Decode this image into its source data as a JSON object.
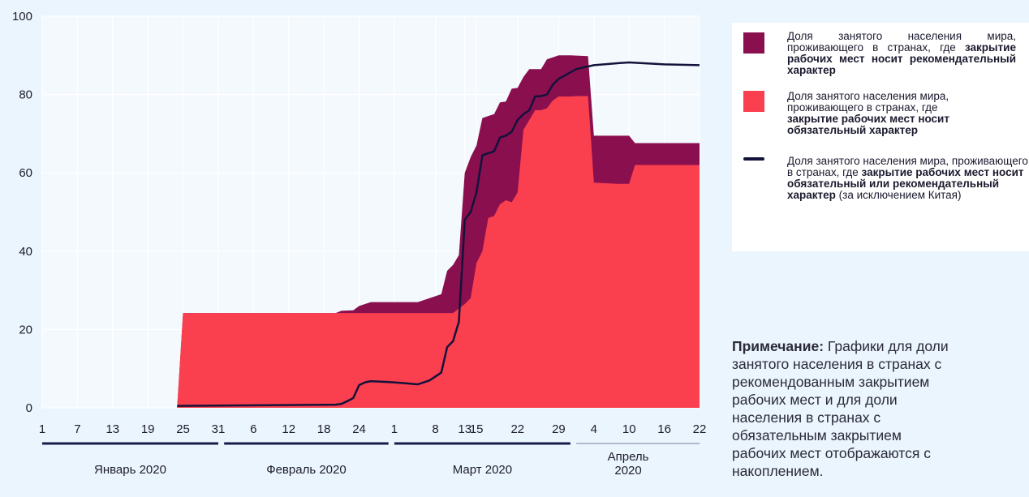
{
  "chart_data": {
    "type": "area",
    "ylim": [
      0,
      100
    ],
    "y_ticks": [
      "0",
      "20",
      "40",
      "60",
      "80",
      "100"
    ],
    "grid": true,
    "x_tick_labels": [
      "1",
      "7",
      "13",
      "19",
      "25",
      "31",
      "6",
      "12",
      "18",
      "24",
      "1",
      "8",
      "13",
      "15",
      "22",
      "29",
      "4",
      "10",
      "16",
      "22"
    ],
    "months": [
      {
        "label": "Январь 2020"
      },
      {
        "label": "Февраль 2020"
      },
      {
        "label": "Март 2020"
      },
      {
        "label": "Апрель\n2020"
      }
    ],
    "series": [
      {
        "key": "recommended",
        "color": "#8a0f4e",
        "dates": [
          "2020-01-24",
          "2020-01-25",
          "2020-02-20",
          "2020-02-21",
          "2020-02-23",
          "2020-02-24",
          "2020-02-25",
          "2020-02-26",
          "2020-03-05",
          "2020-03-09",
          "2020-03-10",
          "2020-03-11",
          "2020-03-12",
          "2020-03-13",
          "2020-03-14",
          "2020-03-15",
          "2020-03-16",
          "2020-03-17",
          "2020-03-18",
          "2020-03-19",
          "2020-03-20",
          "2020-03-21",
          "2020-03-22",
          "2020-03-23",
          "2020-03-24",
          "2020-03-25",
          "2020-03-26",
          "2020-03-27",
          "2020-03-28",
          "2020-03-29",
          "2020-03-31",
          "2020-04-03",
          "2020-04-04",
          "2020-04-08",
          "2020-04-10",
          "2020-04-11",
          "2020-04-16",
          "2020-04-22"
        ],
        "values": [
          0.3,
          24.2,
          24.2,
          24.8,
          24.9,
          26.0,
          26.5,
          27.0,
          27.0,
          29.0,
          35.0,
          36.5,
          39.0,
          60.0,
          64.0,
          67.0,
          74.0,
          74.5,
          75.0,
          78.0,
          78.2,
          81.5,
          81.7,
          84.5,
          86.5,
          86.5,
          86.5,
          89.0,
          89.5,
          90.0,
          90.0,
          89.8,
          69.5,
          69.5,
          69.5,
          67.6,
          67.6,
          67.6
        ]
      },
      {
        "key": "mandatory",
        "color": "#fa3f4f",
        "dates": [
          "2020-01-24",
          "2020-01-25",
          "2020-03-11",
          "2020-03-13",
          "2020-03-14",
          "2020-03-15",
          "2020-03-16",
          "2020-03-17",
          "2020-03-18",
          "2020-03-19",
          "2020-03-20",
          "2020-03-21",
          "2020-03-22",
          "2020-03-23",
          "2020-03-24",
          "2020-03-25",
          "2020-03-26",
          "2020-03-27",
          "2020-03-28",
          "2020-03-29",
          "2020-03-31",
          "2020-04-01",
          "2020-04-02",
          "2020-04-03",
          "2020-04-04",
          "2020-04-08",
          "2020-04-10",
          "2020-04-11",
          "2020-04-16",
          "2020-04-22"
        ],
        "values": [
          0.3,
          24.2,
          24.2,
          26.5,
          28.0,
          37.0,
          40.0,
          48.5,
          49.0,
          52.0,
          53.0,
          52.5,
          55.0,
          71.0,
          73.5,
          76.0,
          76.0,
          76.5,
          78.5,
          79.5,
          79.5,
          79.6,
          79.6,
          79.6,
          57.5,
          57.2,
          57.2,
          62.0,
          62.0,
          62.0
        ]
      },
      {
        "key": "combined",
        "color": "#12123a",
        "dates": [
          "2020-01-24",
          "2020-02-20",
          "2020-02-21",
          "2020-02-22",
          "2020-02-23",
          "2020-02-24",
          "2020-02-25",
          "2020-02-26",
          "2020-03-01",
          "2020-03-05",
          "2020-03-07",
          "2020-03-09",
          "2020-03-10",
          "2020-03-11",
          "2020-03-12",
          "2020-03-13",
          "2020-03-14",
          "2020-03-15",
          "2020-03-16",
          "2020-03-17",
          "2020-03-18",
          "2020-03-19",
          "2020-03-20",
          "2020-03-21",
          "2020-03-22",
          "2020-03-23",
          "2020-03-24",
          "2020-03-25",
          "2020-03-26",
          "2020-03-27",
          "2020-03-28",
          "2020-03-29",
          "2020-04-01",
          "2020-04-04",
          "2020-04-08",
          "2020-04-10",
          "2020-04-16",
          "2020-04-22"
        ],
        "values": [
          0.5,
          0.8,
          1.0,
          1.7,
          2.5,
          5.8,
          6.5,
          6.8,
          6.5,
          6.0,
          7.0,
          9.0,
          15.5,
          17.0,
          22.0,
          48.0,
          50.0,
          55.0,
          64.5,
          65.0,
          65.5,
          69.0,
          69.5,
          70.5,
          73.5,
          75.0,
          76.0,
          79.5,
          79.6,
          80.0,
          82.5,
          84.0,
          86.5,
          87.5,
          88.0,
          88.2,
          87.7,
          87.5
        ]
      }
    ]
  },
  "legend": {
    "items": [
      {
        "normal": "Доля занятого населения мира, проживающего в странах, где ",
        "bold": "закрытие рабочих мест носит рекомендательный характер",
        "tail": ""
      },
      {
        "normal": "Доля занятого населения мира, проживающего в странах, где ",
        "bold": "закрытие рабочих мест носит обязательный характер",
        "tail": ""
      },
      {
        "normal1": "Доля занятого населения мира, проживающего",
        "normal2": "в странах, где ",
        "bold": "закрытие рабочих мест носит обязательный или рекомендательный характер",
        "tail": " (за исключением Китая)"
      }
    ]
  },
  "note": {
    "label": "Примечание:",
    "text": " Графики для доли занятого населения в странах с рекомендованным закрытием рабочих мест и для доли населения в странах с обязательным закрытием рабочих мест отображаются с накоплением."
  }
}
